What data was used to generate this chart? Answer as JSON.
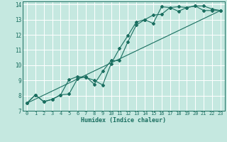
{
  "xlabel": "Humidex (Indice chaleur)",
  "ylabel": "",
  "xlim": [
    -0.5,
    23.5
  ],
  "ylim": [
    7,
    14.2
  ],
  "xticks": [
    0,
    1,
    2,
    3,
    4,
    5,
    6,
    7,
    8,
    9,
    10,
    11,
    12,
    13,
    14,
    15,
    16,
    17,
    18,
    19,
    20,
    21,
    22,
    23
  ],
  "yticks": [
    7,
    8,
    9,
    10,
    11,
    12,
    13,
    14
  ],
  "background_color": "#c5e8e0",
  "grid_color": "#ffffff",
  "line_color": "#1a6e60",
  "line1_x": [
    0,
    1,
    2,
    3,
    4,
    5,
    6,
    7,
    8,
    9,
    10,
    11,
    12,
    13,
    14,
    15,
    16,
    17,
    18,
    19,
    20,
    21,
    22,
    23
  ],
  "line1_y": [
    7.5,
    8.05,
    7.6,
    7.75,
    8.05,
    8.1,
    9.1,
    9.25,
    8.75,
    9.6,
    10.3,
    10.3,
    11.55,
    12.65,
    13.0,
    13.3,
    13.35,
    13.8,
    13.55,
    13.8,
    13.9,
    13.6,
    13.6,
    13.6
  ],
  "line2_x": [
    0,
    1,
    2,
    3,
    4,
    5,
    6,
    7,
    8,
    9,
    10,
    11,
    12,
    13,
    14,
    15,
    16,
    17,
    18,
    19,
    20,
    21,
    22,
    23
  ],
  "line2_y": [
    7.5,
    8.05,
    7.6,
    7.75,
    8.05,
    9.05,
    9.25,
    9.2,
    9.0,
    8.7,
    10.1,
    11.1,
    11.95,
    12.85,
    13.0,
    12.75,
    13.85,
    13.8,
    13.85,
    13.8,
    13.9,
    13.9,
    13.7,
    13.6
  ],
  "line3_x": [
    0,
    23
  ],
  "line3_y": [
    7.5,
    13.6
  ]
}
